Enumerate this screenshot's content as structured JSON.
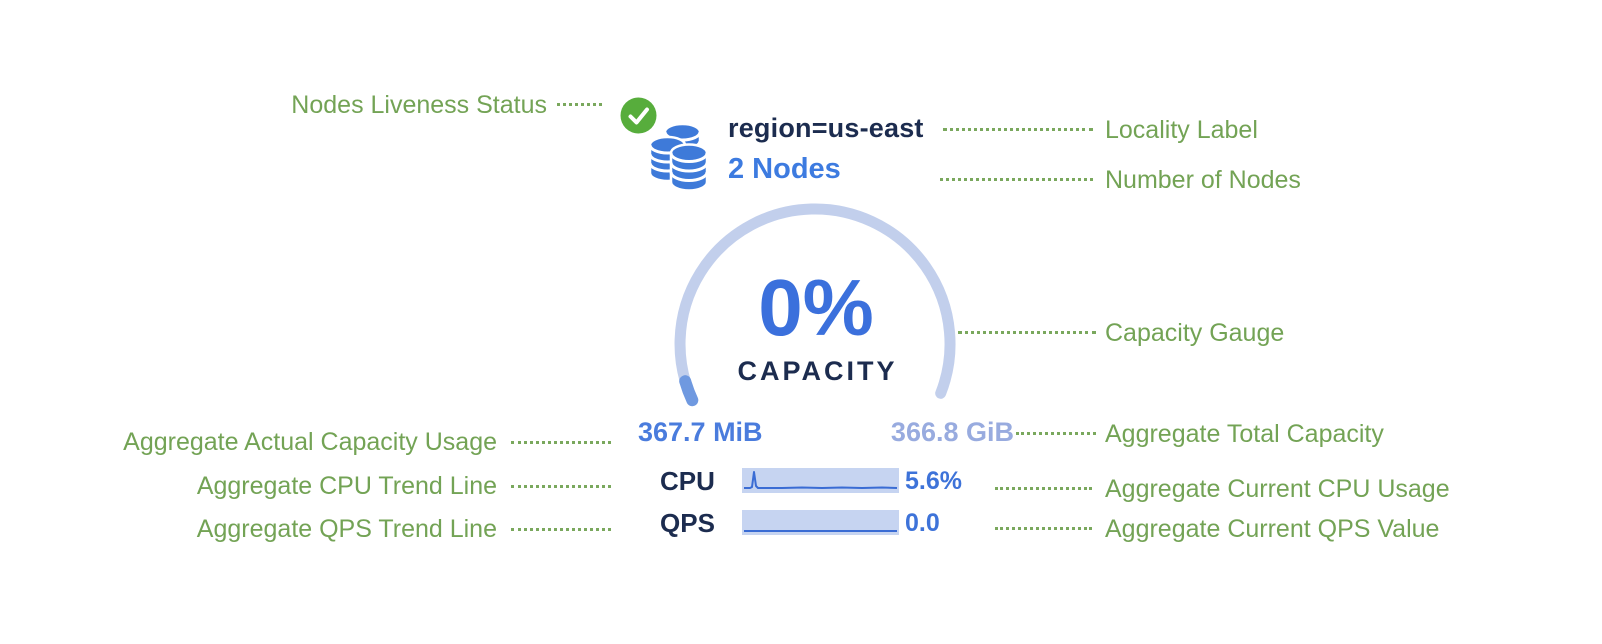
{
  "annotations": {
    "left": [
      {
        "label": "Nodes Liveness Status"
      },
      {
        "label": "Aggregate Actual Capacity Usage"
      },
      {
        "label": "Aggregate CPU Trend Line"
      },
      {
        "label": "Aggregate QPS Trend Line"
      }
    ],
    "right": [
      {
        "label": "Locality Label"
      },
      {
        "label": "Number of Nodes"
      },
      {
        "label": "Capacity Gauge"
      },
      {
        "label": "Aggregate Total Capacity"
      },
      {
        "label": "Aggregate Current CPU Usage"
      },
      {
        "label": "Aggregate Current QPS Value"
      }
    ]
  },
  "node_group": {
    "liveness_icon": "green-check-circle-icon",
    "group_icon": "database-stack-icon",
    "locality": "region=us-east",
    "nodes_link": "2 Nodes",
    "gauge": {
      "percent": "0%",
      "percent_value": 0,
      "caption": "CAPACITY",
      "used": "367.7 MiB",
      "total": "366.8 GiB"
    },
    "metrics": [
      {
        "label": "CPU",
        "value": "5.6%"
      },
      {
        "label": "QPS",
        "value": "0.0"
      }
    ]
  },
  "sparklines": {
    "cpu": [
      [
        2,
        20
      ],
      [
        8,
        20
      ],
      [
        10,
        19
      ],
      [
        12,
        4
      ],
      [
        14,
        18
      ],
      [
        16,
        20
      ],
      [
        40,
        20
      ],
      [
        60,
        19.5
      ],
      [
        80,
        20
      ],
      [
        100,
        19.5
      ],
      [
        120,
        20
      ],
      [
        140,
        19.5
      ],
      [
        155,
        20
      ]
    ],
    "qps": [
      [
        2,
        21
      ],
      [
        155,
        21
      ]
    ]
  },
  "colors": {
    "annotation_green": "#73a355",
    "navy": "#1c2c4f",
    "link_blue": "#3d7be0",
    "value_blue": "#3e73d9",
    "muted_capacity_blue": "#98abdf",
    "gauge_arc": "#c2cfec",
    "gauge_tick": "#6f99e0",
    "sparkline_bg": "#c6d4f1",
    "sparkline_line": "#3a6cd4",
    "check_green": "#57ad3c",
    "db_icon_blue": "#3e7ad9"
  }
}
